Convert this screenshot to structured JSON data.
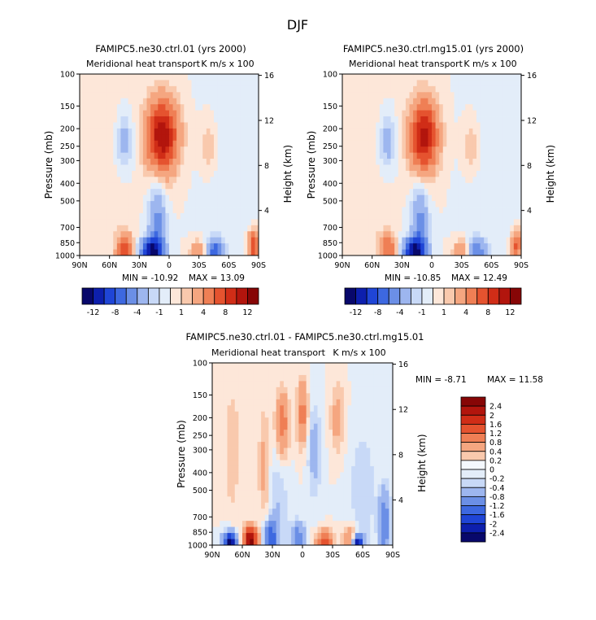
{
  "page_title": "DJF",
  "colors": {
    "neg": [
      "#08086b",
      "#0d1fad",
      "#1f45d6",
      "#3d68e0",
      "#6b8fe6",
      "#9db6ef",
      "#c8d9f7",
      "#e3edf9"
    ],
    "pos": [
      "#fde7d9",
      "#f9c9ad",
      "#f5a680",
      "#ef7f55",
      "#e5532f",
      "#d02d17",
      "#b2150d",
      "#870606"
    ],
    "zero_band": "#f4f8fd"
  },
  "chart_data": [
    {
      "id": "panel_a",
      "type": "heatmap",
      "title": "FAMIPC5.ne30.ctrl.01 (yrs 2000)",
      "subtitle": "Meridional heat transport",
      "units": "K m/s x 100",
      "ylabel": "Pressure (mb)",
      "y2label": "Height (km)",
      "x_ticks": [
        "90N",
        "60N",
        "30N",
        "0",
        "30S",
        "60S",
        "90S"
      ],
      "x_values": [
        90,
        60,
        30,
        0,
        -30,
        -60,
        -90
      ],
      "y_ticks": [
        "100",
        "150",
        "200",
        "250",
        "300",
        "400",
        "500",
        "700",
        "850",
        "1000"
      ],
      "y_values": [
        100,
        150,
        200,
        250,
        300,
        400,
        500,
        700,
        850,
        1000
      ],
      "y2_ticks": [
        "16",
        "12",
        "8",
        "4"
      ],
      "y2_values": [
        16,
        12,
        8,
        4
      ],
      "min_label": "MIN = -10.92",
      "max_label": "MAX = 13.09",
      "colorbar_labels": [
        "-12",
        "-8",
        "-4",
        "-1",
        "1",
        "4",
        "8",
        "12"
      ],
      "features": [
        {
          "lat": 7,
          "p": 220,
          "amp": 12,
          "wlat": 11,
          "wlp": 0.32
        },
        {
          "lat": 44,
          "p": 930,
          "amp": 7,
          "wlat": 6,
          "wlp": 0.14
        },
        {
          "lat": 18,
          "p": 960,
          "amp": -11,
          "wlat": 8,
          "wlp": 0.12
        },
        {
          "lat": 12,
          "p": 720,
          "amp": -5,
          "wlat": 6,
          "wlp": 0.4
        },
        {
          "lat": -45,
          "p": 940,
          "amp": -7,
          "wlat": 6,
          "wlp": 0.1
        },
        {
          "lat": -85,
          "p": 880,
          "amp": 8,
          "wlat": 4,
          "wlp": 0.14
        },
        {
          "lat": -30,
          "p": 950,
          "amp": 4,
          "wlat": 6,
          "wlp": 0.1
        },
        {
          "lat": 45,
          "p": 240,
          "amp": -3,
          "wlat": 6,
          "wlp": 0.25
        },
        {
          "lat": -40,
          "p": 250,
          "amp": 2,
          "wlat": 6,
          "wlp": 0.25
        },
        {
          "lat": 70,
          "p": 450,
          "amp": 0.8,
          "wlat": 20,
          "wlp": 1.2
        },
        {
          "lat": -65,
          "p": 400,
          "amp": -0.8,
          "wlat": 20,
          "wlp": 1.2
        }
      ]
    },
    {
      "id": "panel_b",
      "type": "heatmap",
      "title": "FAMIPC5.ne30.ctrl.mg15.01 (yrs 2000)",
      "subtitle": "Meridional heat transport",
      "units": "K m/s x 100",
      "ylabel": "Pressure (mb)",
      "y2label": "Height (km)",
      "x_ticks": [
        "90N",
        "60N",
        "30N",
        "0",
        "30S",
        "60S",
        "90S"
      ],
      "x_values": [
        90,
        60,
        30,
        0,
        -30,
        -60,
        -90
      ],
      "y_ticks": [
        "100",
        "150",
        "200",
        "250",
        "300",
        "400",
        "500",
        "700",
        "850",
        "1000"
      ],
      "y_values": [
        100,
        150,
        200,
        250,
        300,
        400,
        500,
        700,
        850,
        1000
      ],
      "y2_ticks": [
        "16",
        "12",
        "8",
        "4"
      ],
      "y2_values": [
        16,
        12,
        8,
        4
      ],
      "min_label": "MIN = -10.85",
      "max_label": "MAX = 12.49",
      "colorbar_labels": [
        "-12",
        "-8",
        "-4",
        "-1",
        "1",
        "4",
        "8",
        "12"
      ],
      "features": [
        {
          "lat": 8,
          "p": 220,
          "amp": 11,
          "wlat": 10,
          "wlp": 0.32
        },
        {
          "lat": 44,
          "p": 930,
          "amp": 6,
          "wlat": 6,
          "wlp": 0.14
        },
        {
          "lat": 18,
          "p": 960,
          "amp": -11,
          "wlat": 8,
          "wlp": 0.12
        },
        {
          "lat": 12,
          "p": 720,
          "amp": -5,
          "wlat": 6,
          "wlp": 0.4
        },
        {
          "lat": -45,
          "p": 940,
          "amp": -6,
          "wlat": 6,
          "wlp": 0.1
        },
        {
          "lat": -85,
          "p": 880,
          "amp": 7,
          "wlat": 4,
          "wlp": 0.14
        },
        {
          "lat": -30,
          "p": 950,
          "amp": 4,
          "wlat": 6,
          "wlp": 0.1
        },
        {
          "lat": 45,
          "p": 240,
          "amp": -3,
          "wlat": 6,
          "wlp": 0.25
        },
        {
          "lat": -40,
          "p": 250,
          "amp": 2,
          "wlat": 6,
          "wlp": 0.25
        },
        {
          "lat": 70,
          "p": 450,
          "amp": 0.8,
          "wlat": 20,
          "wlp": 1.2
        },
        {
          "lat": -65,
          "p": 400,
          "amp": -0.8,
          "wlat": 20,
          "wlp": 1.2
        }
      ]
    },
    {
      "id": "panel_c",
      "type": "heatmap",
      "title": "FAMIPC5.ne30.ctrl.01 - FAMIPC5.ne30.ctrl.mg15.01",
      "subtitle": "Meridional heat transport",
      "units": "K m/s x 100",
      "ylabel": "Pressure (mb)",
      "y2label": "Height (km)",
      "x_ticks": [
        "90N",
        "60N",
        "30N",
        "0",
        "30S",
        "60S",
        "90S"
      ],
      "x_values": [
        90,
        60,
        30,
        0,
        -30,
        -60,
        -90
      ],
      "y_ticks": [
        "100",
        "150",
        "200",
        "250",
        "300",
        "400",
        "500",
        "700",
        "850",
        "1000"
      ],
      "y_values": [
        100,
        150,
        200,
        250,
        300,
        400,
        500,
        700,
        850,
        1000
      ],
      "y2_ticks": [
        "16",
        "12",
        "8",
        "4"
      ],
      "y2_values": [
        16,
        12,
        8,
        4
      ],
      "min_label": "MIN = -8.71",
      "max_label": "MAX = 11.58",
      "colorbar_labels": [
        "2.4",
        "2",
        "1.6",
        "1.2",
        "0.8",
        "0.4",
        "0.2",
        "0",
        "-0.2",
        "-0.4",
        "-0.8",
        "-1.2",
        "-1.6",
        "-2",
        "-2.4"
      ],
      "features": [
        {
          "lat": 52,
          "p": 940,
          "amp": 2.6,
          "wlat": 5,
          "wlp": 0.12
        },
        {
          "lat": 72,
          "p": 960,
          "amp": -2.6,
          "wlat": 5,
          "wlp": 0.09
        },
        {
          "lat": 32,
          "p": 920,
          "amp": -1.4,
          "wlat": 5,
          "wlp": 0.15
        },
        {
          "lat": 4,
          "p": 940,
          "amp": -1.2,
          "wlat": 5,
          "wlp": 0.15
        },
        {
          "lat": -22,
          "p": 960,
          "amp": 1.4,
          "wlat": 6,
          "wlp": 0.1
        },
        {
          "lat": -55,
          "p": 970,
          "amp": -2.6,
          "wlat": 4,
          "wlp": 0.07
        },
        {
          "lat": -48,
          "p": 930,
          "amp": 1.1,
          "wlat": 5,
          "wlp": 0.12
        },
        {
          "lat": -82,
          "p": 760,
          "amp": -1.2,
          "wlat": 4,
          "wlp": 0.3
        },
        {
          "lat": 20,
          "p": 220,
          "amp": 1.1,
          "wlat": 5,
          "wlp": 0.3
        },
        {
          "lat": 0,
          "p": 190,
          "amp": 1.0,
          "wlat": 4,
          "wlp": 0.3
        },
        {
          "lat": 38,
          "p": 380,
          "amp": 0.6,
          "wlat": 4,
          "wlp": 0.5
        },
        {
          "lat": -12,
          "p": 300,
          "amp": -0.6,
          "wlat": 5,
          "wlp": 0.4
        },
        {
          "lat": -35,
          "p": 200,
          "amp": 0.6,
          "wlat": 5,
          "wlp": 0.3
        },
        {
          "lat": 25,
          "p": 600,
          "amp": -0.4,
          "wlat": 8,
          "wlp": 0.6
        },
        {
          "lat": -60,
          "p": 500,
          "amp": -0.35,
          "wlat": 10,
          "wlp": 0.6
        },
        {
          "lat": 70,
          "p": 300,
          "amp": 0.35,
          "wlat": 6,
          "wlp": 0.6
        }
      ]
    }
  ]
}
